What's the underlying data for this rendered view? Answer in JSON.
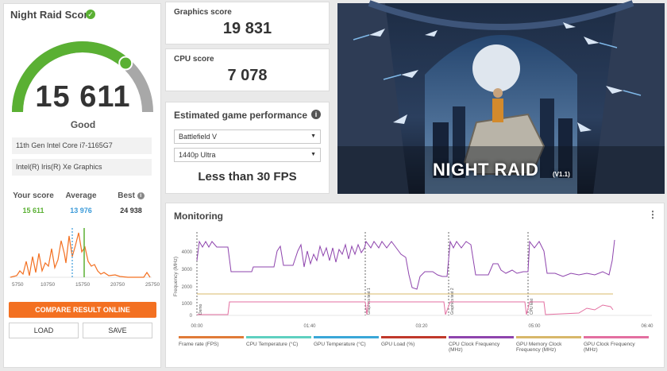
{
  "score_panel": {
    "title": "Night Raid Score",
    "score": "15 611",
    "rating": "Good",
    "cpu": "11th Gen Intel Core i7-1165G7",
    "gpu": "Intel(R) Iris(R) Xe Graphics",
    "your_score_label": "Your score",
    "your_score": "15 611",
    "average_label": "Average",
    "average": "13 976",
    "best_label": "Best",
    "best": "24 938",
    "dist_ticks": [
      "5750",
      "10750",
      "15750",
      "20750",
      "25750"
    ],
    "compare_button": "COMPARE RESULT ONLINE",
    "load_button": "LOAD",
    "save_button": "SAVE",
    "gauge_fraction": 0.73,
    "colors": {
      "green": "#5ab033",
      "gray": "#a8a8a8",
      "orange": "#f37021",
      "average": "#3a9ad9"
    }
  },
  "graphics": {
    "label": "Graphics score",
    "value": "19 831"
  },
  "cpu_tile": {
    "label": "CPU score",
    "value": "7 078"
  },
  "estimate": {
    "title": "Estimated game performance",
    "game": "Battlefield V",
    "resolution": "1440p Ultra",
    "result": "Less than 30 FPS"
  },
  "banner": {
    "title": "NIGHT RAID",
    "version": "(V1.1)"
  },
  "monitoring": {
    "title": "Monitoring",
    "y_axis_label": "Frequency (MHz)",
    "y_ticks": [
      "4000",
      "3000",
      "2000",
      "1000",
      "0"
    ],
    "x_ticks": [
      "00:00",
      "01:40",
      "03:20",
      "05:00",
      "06:40"
    ],
    "markers": [
      "Demo",
      "Graphics test 1",
      "Graphics test 2",
      "CPU test"
    ],
    "legend": [
      {
        "label": "Frame rate (FPS)",
        "color": "#e07b39"
      },
      {
        "label": "CPU Temperature (°C)",
        "color": "#5fd0c0"
      },
      {
        "label": "GPU Temperature (°C)",
        "color": "#3aa7d8"
      },
      {
        "label": "GPU Load (%)",
        "color": "#c0392b"
      },
      {
        "label": "CPU Clock Frequency (MHz)",
        "color": "#8e44ad"
      },
      {
        "label": "GPU Memory Clock Frequency (MHz)",
        "color": "#d8b86a"
      },
      {
        "label": "GPU Clock Frequency (MHz)",
        "color": "#e36fa0"
      }
    ]
  }
}
